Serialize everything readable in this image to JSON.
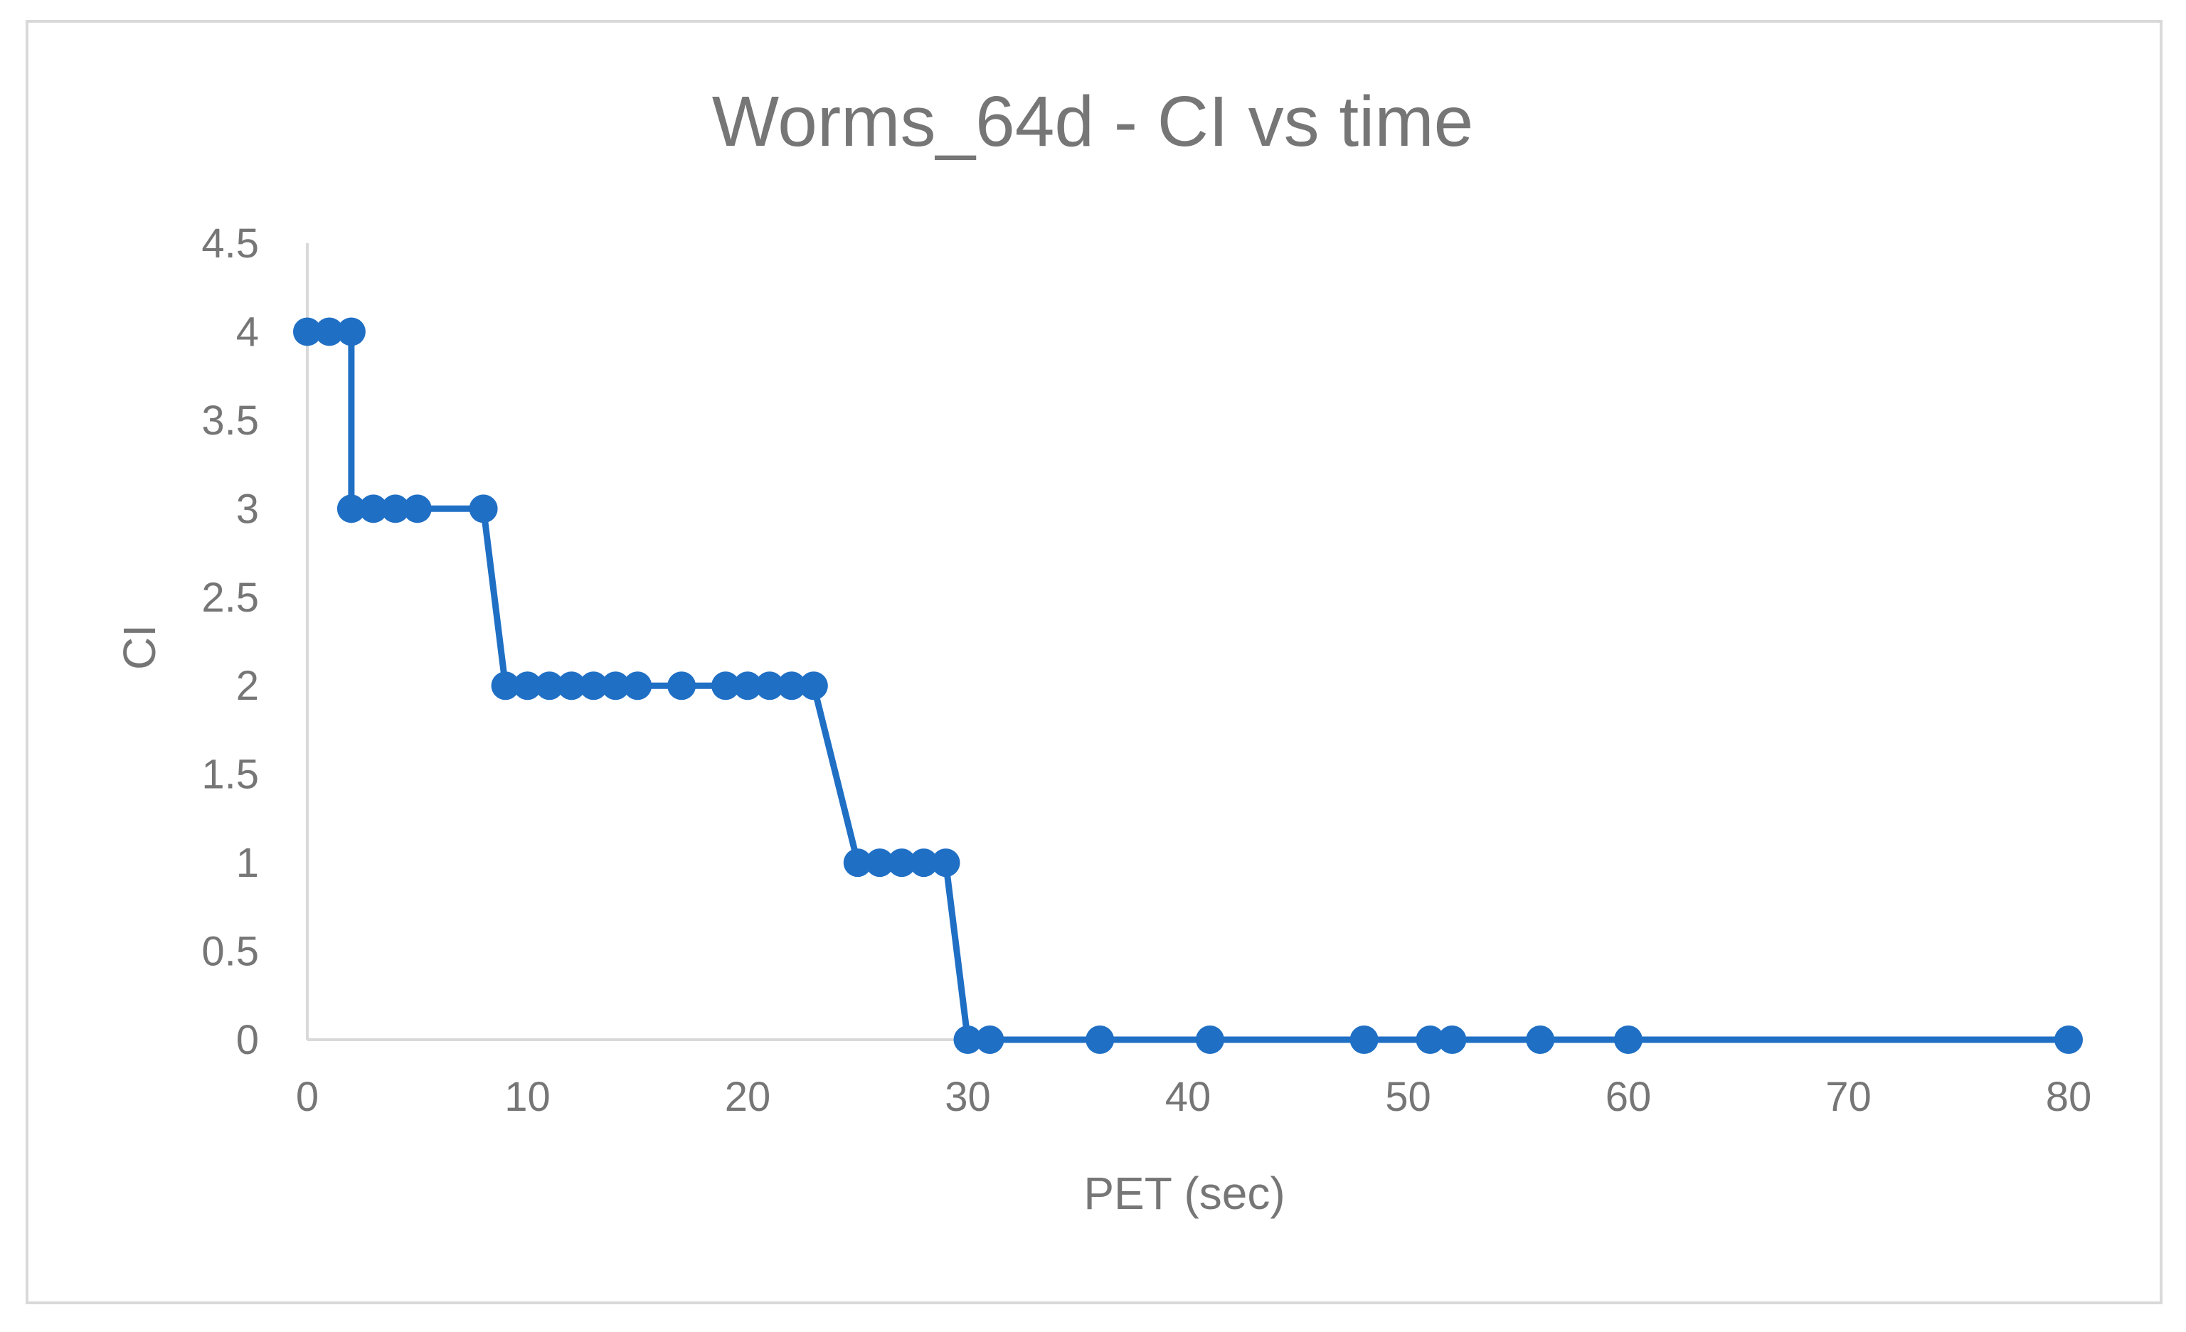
{
  "chart_data": {
    "type": "line",
    "title": "Worms_64d - CI vs time",
    "xlabel": "PET (sec)",
    "ylabel": "CI",
    "xlim": [
      0,
      80
    ],
    "ylim": [
      0,
      4.5
    ],
    "xticks": [
      0,
      10,
      20,
      30,
      40,
      50,
      60,
      70,
      80
    ],
    "yticks": [
      0,
      0.5,
      1,
      1.5,
      2,
      2.5,
      3,
      3.5,
      4,
      4.5
    ],
    "xtick_labels": [
      "0",
      "10",
      "20",
      "30",
      "40",
      "50",
      "60",
      "70",
      "80"
    ],
    "ytick_labels": [
      "0",
      "0.5",
      "1",
      "1.5",
      "2",
      "2.5",
      "3",
      "3.5",
      "4",
      "4.5"
    ],
    "grid": false,
    "legend": "none",
    "series": [
      {
        "name": "CI",
        "color": "#1f6fc5",
        "x": [
          0,
          1,
          2,
          2,
          3,
          4,
          5,
          8,
          9,
          10,
          11,
          12,
          13,
          14,
          15,
          17,
          19,
          20,
          21,
          22,
          23,
          25,
          26,
          27,
          28,
          29,
          30,
          31,
          36,
          41,
          48,
          51,
          52,
          56,
          60,
          80
        ],
        "y": [
          4,
          4,
          4,
          3,
          3,
          3,
          3,
          3,
          2,
          2,
          2,
          2,
          2,
          2,
          2,
          2,
          2,
          2,
          2,
          2,
          2,
          1,
          1,
          1,
          1,
          1,
          0,
          0,
          0,
          0,
          0,
          0,
          0,
          0,
          0,
          0
        ]
      }
    ]
  },
  "colors": {
    "series": "#1f6fc5",
    "axis": "#d9d9d9",
    "text": "#767676",
    "frame": "#d9d9d9"
  }
}
